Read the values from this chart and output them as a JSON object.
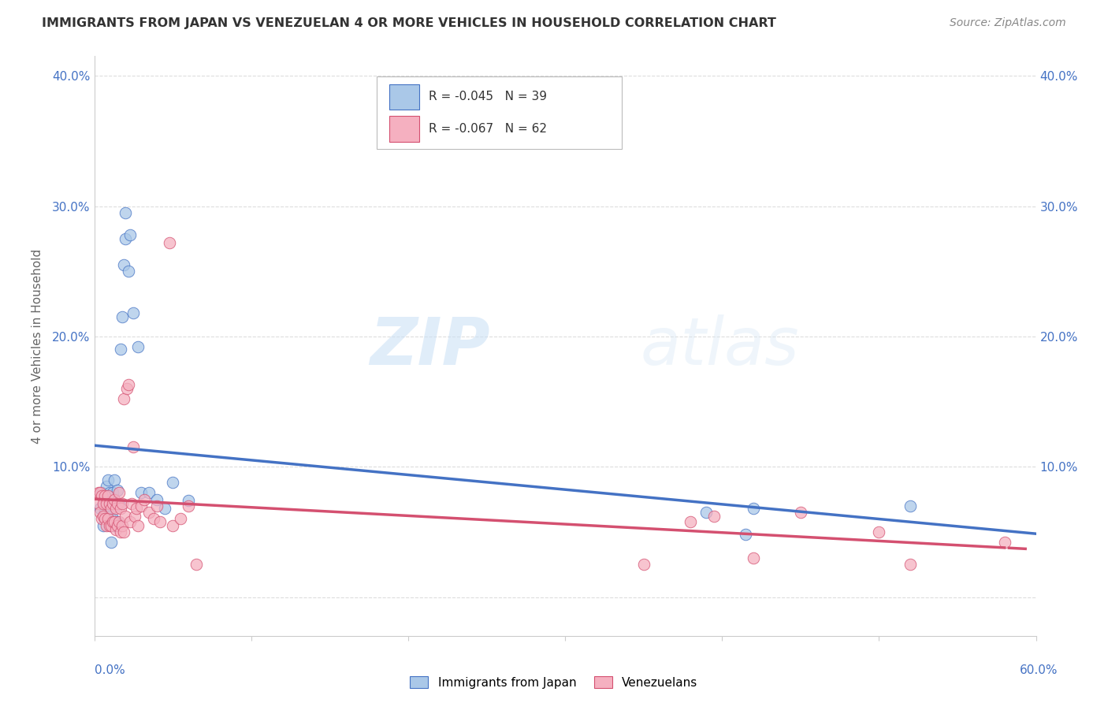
{
  "title": "IMMIGRANTS FROM JAPAN VS VENEZUELAN 4 OR MORE VEHICLES IN HOUSEHOLD CORRELATION CHART",
  "source": "Source: ZipAtlas.com",
  "ylabel": "4 or more Vehicles in Household",
  "blue_R": "-0.045",
  "blue_N": "39",
  "pink_R": "-0.067",
  "pink_N": "62",
  "blue_fill": "#aac8e8",
  "blue_edge": "#4472c4",
  "pink_fill": "#f5b0c0",
  "pink_edge": "#d45070",
  "blue_line": "#4472c4",
  "pink_line": "#d45070",
  "legend_label_blue": "Immigrants from Japan",
  "legend_label_pink": "Venezuelans",
  "watermark_zip": "ZIP",
  "watermark_atlas": "atlas",
  "xmin": 0.0,
  "xmax": 0.6,
  "ymin": -0.03,
  "ymax": 0.415,
  "ytick_positions": [
    0.0,
    0.1,
    0.2,
    0.3,
    0.4
  ],
  "ytick_labels": [
    "",
    "10.0%",
    "20.0%",
    "30.0%",
    "40.0%"
  ],
  "blue_x": [
    0.004,
    0.005,
    0.006,
    0.007,
    0.008,
    0.008,
    0.009,
    0.009,
    0.01,
    0.01,
    0.011,
    0.011,
    0.012,
    0.012,
    0.013,
    0.013,
    0.014,
    0.015,
    0.015,
    0.016,
    0.017,
    0.018,
    0.019,
    0.02,
    0.02,
    0.022,
    0.023,
    0.025,
    0.028,
    0.03,
    0.035,
    0.04,
    0.045,
    0.05,
    0.06,
    0.39,
    0.415,
    0.42,
    0.52
  ],
  "blue_y": [
    0.068,
    0.08,
    0.055,
    0.065,
    0.085,
    0.06,
    0.075,
    0.09,
    0.062,
    0.08,
    0.055,
    0.042,
    0.06,
    0.08,
    0.09,
    0.055,
    0.07,
    0.082,
    0.058,
    0.072,
    0.19,
    0.215,
    0.255,
    0.295,
    0.275,
    0.25,
    0.278,
    0.218,
    0.192,
    0.08,
    0.08,
    0.075,
    0.068,
    0.088,
    0.074,
    0.065,
    0.048,
    0.068,
    0.07
  ],
  "pink_x": [
    0.003,
    0.003,
    0.004,
    0.004,
    0.005,
    0.005,
    0.006,
    0.006,
    0.007,
    0.007,
    0.008,
    0.008,
    0.009,
    0.009,
    0.01,
    0.01,
    0.011,
    0.011,
    0.012,
    0.012,
    0.013,
    0.013,
    0.014,
    0.014,
    0.015,
    0.015,
    0.016,
    0.016,
    0.017,
    0.017,
    0.018,
    0.018,
    0.019,
    0.019,
    0.02,
    0.021,
    0.022,
    0.023,
    0.024,
    0.025,
    0.026,
    0.027,
    0.028,
    0.03,
    0.032,
    0.035,
    0.038,
    0.04,
    0.042,
    0.048,
    0.05,
    0.055,
    0.06,
    0.065,
    0.35,
    0.38,
    0.395,
    0.42,
    0.45,
    0.5,
    0.52,
    0.58
  ],
  "pink_y": [
    0.072,
    0.08,
    0.065,
    0.08,
    0.06,
    0.078,
    0.062,
    0.072,
    0.06,
    0.078,
    0.055,
    0.072,
    0.06,
    0.078,
    0.055,
    0.072,
    0.055,
    0.068,
    0.058,
    0.072,
    0.058,
    0.075,
    0.052,
    0.068,
    0.055,
    0.072,
    0.058,
    0.08,
    0.05,
    0.068,
    0.055,
    0.072,
    0.152,
    0.05,
    0.062,
    0.16,
    0.163,
    0.058,
    0.072,
    0.115,
    0.062,
    0.068,
    0.055,
    0.07,
    0.075,
    0.065,
    0.06,
    0.07,
    0.058,
    0.272,
    0.055,
    0.06,
    0.07,
    0.025,
    0.025,
    0.058,
    0.062,
    0.03,
    0.065,
    0.05,
    0.025,
    0.042
  ],
  "bg_color": "#ffffff",
  "grid_color": "#dddddd",
  "axis_color": "#cccccc",
  "title_color": "#333333",
  "source_color": "#888888",
  "ylabel_color": "#666666",
  "tick_label_color": "#4472c4"
}
